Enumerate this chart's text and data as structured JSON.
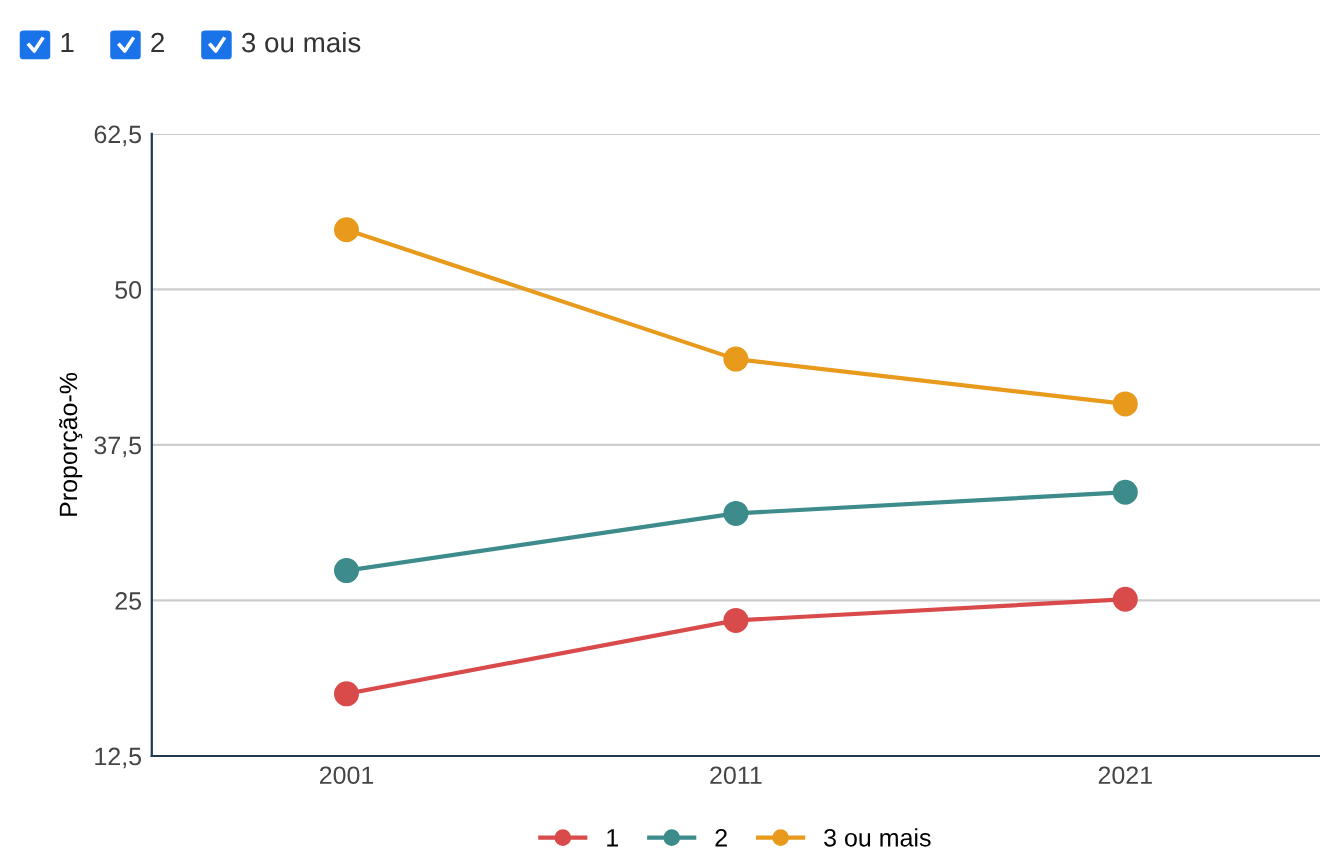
{
  "chart_data": {
    "type": "line",
    "ylabel": "Proporção-%",
    "categories": [
      "2001",
      "2011",
      "2021"
    ],
    "series": [
      {
        "name": "1",
        "color": "#d94b4b",
        "values": [
          17.5,
          23.4,
          25.1
        ]
      },
      {
        "name": "2",
        "color": "#3d8b8b",
        "values": [
          27.4,
          32.0,
          33.7
        ]
      },
      {
        "name": "3 ou mais",
        "color": "#e89a1c",
        "values": [
          54.8,
          44.4,
          40.8
        ]
      }
    ],
    "ylim": [
      12.5,
      62.5
    ],
    "yticks": [
      {
        "value": 12.5,
        "label": "12,5"
      },
      {
        "value": 25,
        "label": "25"
      },
      {
        "value": 37.5,
        "label": "37,5"
      },
      {
        "value": 50,
        "label": "50"
      },
      {
        "value": 62.5,
        "label": "62,5"
      }
    ],
    "grid": "y",
    "legend": "bottom",
    "marker": "circle",
    "line_style": "solid"
  }
}
